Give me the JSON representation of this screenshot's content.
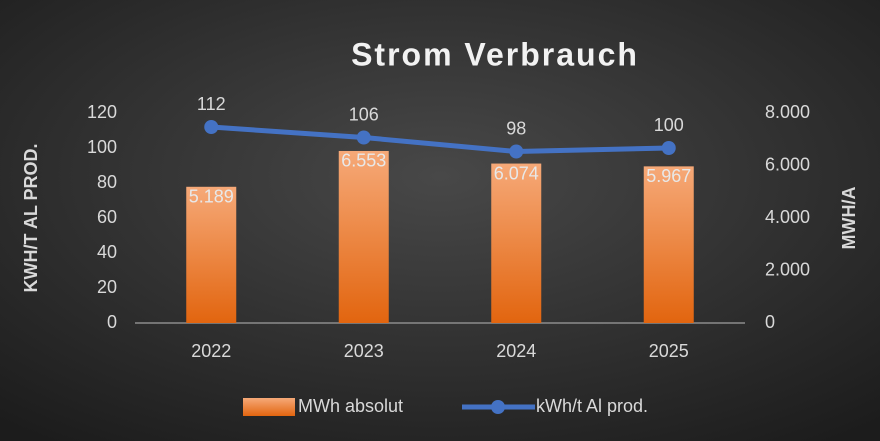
{
  "chart_data": {
    "type": "bar_line",
    "title": "Strom Verbrauch",
    "ylabel": "KWH/T AL PROD.",
    "y2label": "MWH/A",
    "categories": [
      "2022",
      "2023",
      "2024",
      "2025"
    ],
    "series": [
      {
        "name": "MWh absolut",
        "type": "bar",
        "axis": "y2",
        "color": "#ed7d31",
        "values": [
          5189,
          6553,
          6074,
          5967
        ],
        "value_labels": [
          "5.189",
          "6.553",
          "6.074",
          "5.967"
        ]
      },
      {
        "name": "kWh/t Al prod.",
        "type": "line",
        "axis": "y",
        "color": "#4472c4",
        "values": [
          112,
          106,
          98,
          100
        ]
      }
    ],
    "ylim": [
      0,
      120
    ],
    "yticks": [
      0,
      20,
      40,
      60,
      80,
      100,
      120
    ],
    "y2lim": [
      0,
      8000
    ],
    "y2ticks": [
      0,
      {
        "value": 2000,
        "label": "2.000"
      },
      {
        "value": 4000,
        "label": "4.000"
      },
      {
        "value": 6000,
        "label": "6.000"
      },
      {
        "value": 8000,
        "label": "8.000"
      }
    ],
    "grid": false,
    "legend": "bottom"
  }
}
